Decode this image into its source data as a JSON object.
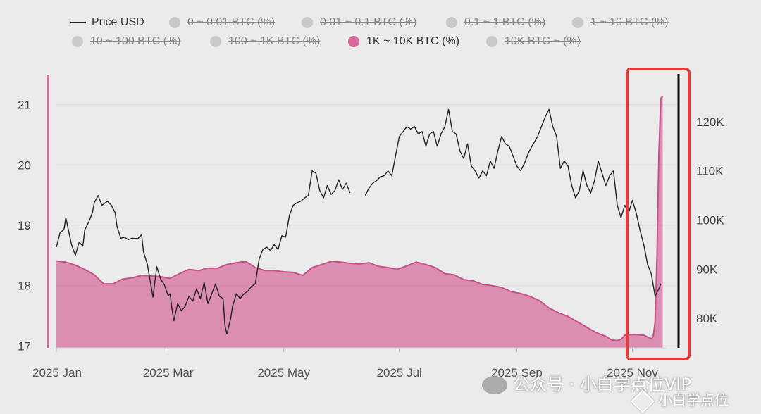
{
  "chart_data": {
    "type": "area",
    "legend": [
      {
        "label": "Price USD",
        "marker": "line",
        "active": true
      },
      {
        "label": "0 ~ 0.01 BTC (%)",
        "marker": "dot",
        "active": false
      },
      {
        "label": "0.01 ~ 0.1 BTC (%)",
        "marker": "dot",
        "active": false
      },
      {
        "label": "0.1 ~ 1 BTC (%)",
        "marker": "dot",
        "active": false
      },
      {
        "label": "1 ~ 10 BTC (%)",
        "marker": "dot",
        "active": false
      },
      {
        "label": "10 ~ 100 BTC (%)",
        "marker": "dot",
        "active": false
      },
      {
        "label": "100 ~ 1K BTC (%)",
        "marker": "dot",
        "active": false
      },
      {
        "label": "1K ~ 10K BTC (%)",
        "marker": "dot",
        "active": true
      },
      {
        "label": "10K BTC ~ (%)",
        "marker": "dot",
        "active": false
      }
    ],
    "x_ticks": [
      "2025 Jan",
      "2025 Mar",
      "2025 May",
      "2025 Jul",
      "2025 Sep",
      "2025 Nov"
    ],
    "x_tick_days": [
      0,
      59,
      120,
      181,
      243,
      304
    ],
    "y_left": {
      "ticks": [
        17,
        18,
        19,
        20,
        21
      ],
      "range": [
        16.97,
        21.45
      ]
    },
    "y_right": {
      "ticks": [
        80000,
        90000,
        100000,
        110000,
        120000
      ],
      "tick_labels": [
        "80K",
        "90K",
        "100K",
        "110K",
        "120K"
      ],
      "range": [
        74000,
        129000
      ]
    },
    "x_range_days": [
      0,
      328
    ],
    "series": [
      {
        "name": "1K ~ 10K BTC (%)",
        "axis": "left",
        "type": "area",
        "color": "#d6699b",
        "points": [
          [
            0,
            18.41
          ],
          [
            5,
            18.39
          ],
          [
            10,
            18.34
          ],
          [
            15,
            18.27
          ],
          [
            20,
            18.18
          ],
          [
            25,
            18.03
          ],
          [
            30,
            18.03
          ],
          [
            35,
            18.11
          ],
          [
            40,
            18.13
          ],
          [
            45,
            18.17
          ],
          [
            50,
            18.16
          ],
          [
            55,
            18.15
          ],
          [
            60,
            18.12
          ],
          [
            65,
            18.2
          ],
          [
            70,
            18.27
          ],
          [
            75,
            18.25
          ],
          [
            80,
            18.29
          ],
          [
            85,
            18.29
          ],
          [
            90,
            18.35
          ],
          [
            95,
            18.38
          ],
          [
            100,
            18.4
          ],
          [
            105,
            18.3
          ],
          [
            110,
            18.25
          ],
          [
            115,
            18.25
          ],
          [
            120,
            18.23
          ],
          [
            125,
            18.22
          ],
          [
            130,
            18.17
          ],
          [
            135,
            18.3
          ],
          [
            140,
            18.35
          ],
          [
            145,
            18.4
          ],
          [
            150,
            18.39
          ],
          [
            155,
            18.37
          ],
          [
            160,
            18.36
          ],
          [
            165,
            18.38
          ],
          [
            170,
            18.32
          ],
          [
            175,
            18.3
          ],
          [
            180,
            18.27
          ],
          [
            185,
            18.33
          ],
          [
            190,
            18.39
          ],
          [
            195,
            18.35
          ],
          [
            200,
            18.3
          ],
          [
            205,
            18.2
          ],
          [
            210,
            18.18
          ],
          [
            215,
            18.1
          ],
          [
            220,
            18.08
          ],
          [
            225,
            18.02
          ],
          [
            230,
            18.0
          ],
          [
            235,
            17.97
          ],
          [
            240,
            17.9
          ],
          [
            245,
            17.87
          ],
          [
            250,
            17.82
          ],
          [
            255,
            17.75
          ],
          [
            260,
            17.63
          ],
          [
            265,
            17.55
          ],
          [
            270,
            17.49
          ],
          [
            275,
            17.4
          ],
          [
            280,
            17.31
          ],
          [
            285,
            17.22
          ],
          [
            290,
            17.16
          ],
          [
            293,
            17.1
          ],
          [
            296,
            17.09
          ],
          [
            298,
            17.11
          ],
          [
            300,
            17.18
          ],
          [
            305,
            17.19
          ],
          [
            310,
            17.18
          ],
          [
            314,
            17.12
          ],
          [
            315,
            17.15
          ],
          [
            316,
            17.4
          ],
          [
            317,
            18.5
          ],
          [
            318,
            20.2
          ],
          [
            319,
            21.1
          ],
          [
            320,
            21.14
          ]
        ]
      },
      {
        "name": "Price USD",
        "axis": "right",
        "type": "line",
        "color": "#222222",
        "points": [
          [
            0,
            94500
          ],
          [
            2,
            97500
          ],
          [
            4,
            98000
          ],
          [
            5,
            100500
          ],
          [
            7,
            96800
          ],
          [
            8,
            95000
          ],
          [
            10,
            92800
          ],
          [
            12,
            95500
          ],
          [
            14,
            94700
          ],
          [
            15,
            98000
          ],
          [
            17,
            99500
          ],
          [
            19,
            101500
          ],
          [
            20,
            103500
          ],
          [
            22,
            105000
          ],
          [
            24,
            103000
          ],
          [
            27,
            103800
          ],
          [
            29,
            103000
          ],
          [
            31,
            101500
          ],
          [
            32,
            98700
          ],
          [
            34,
            96300
          ],
          [
            36,
            96500
          ],
          [
            38,
            96000
          ],
          [
            40,
            96300
          ],
          [
            43,
            96200
          ],
          [
            45,
            97000
          ],
          [
            46,
            93500
          ],
          [
            48,
            91000
          ],
          [
            50,
            86500
          ],
          [
            51,
            84300
          ],
          [
            53,
            90500
          ],
          [
            55,
            88000
          ],
          [
            57,
            86800
          ],
          [
            59,
            84600
          ],
          [
            60,
            85000
          ],
          [
            61,
            82000
          ],
          [
            62,
            79500
          ],
          [
            64,
            83000
          ],
          [
            66,
            81500
          ],
          [
            68,
            82500
          ],
          [
            70,
            84500
          ],
          [
            72,
            83500
          ],
          [
            74,
            86000
          ],
          [
            76,
            84000
          ],
          [
            78,
            87300
          ],
          [
            80,
            83000
          ],
          [
            82,
            85000
          ],
          [
            84,
            87000
          ],
          [
            86,
            84500
          ],
          [
            88,
            84000
          ],
          [
            89,
            78500
          ],
          [
            90,
            76800
          ],
          [
            92,
            80000
          ],
          [
            93,
            82500
          ],
          [
            95,
            85000
          ],
          [
            97,
            84000
          ],
          [
            99,
            85000
          ],
          [
            101,
            85500
          ],
          [
            103,
            86500
          ],
          [
            105,
            87000
          ],
          [
            107,
            92000
          ],
          [
            109,
            94000
          ],
          [
            111,
            94500
          ],
          [
            113,
            93800
          ],
          [
            115,
            95000
          ],
          [
            117,
            94000
          ],
          [
            119,
            96800
          ],
          [
            121,
            96500
          ],
          [
            123,
            101000
          ],
          [
            125,
            103000
          ],
          [
            127,
            103500
          ],
          [
            129,
            103800
          ],
          [
            131,
            104500
          ],
          [
            133,
            105000
          ],
          [
            135,
            110000
          ],
          [
            137,
            109500
          ],
          [
            139,
            106000
          ],
          [
            141,
            104500
          ],
          [
            143,
            107000
          ],
          [
            145,
            105200
          ],
          [
            147,
            106000
          ],
          [
            149,
            108200
          ],
          [
            151,
            106200
          ],
          [
            153,
            107500
          ],
          [
            155,
            105500
          ],
          [
            163,
            105000
          ],
          [
            165,
            106500
          ],
          [
            167,
            107500
          ],
          [
            169,
            108000
          ],
          [
            171,
            108800
          ],
          [
            173,
            109000
          ],
          [
            175,
            110000
          ],
          [
            177,
            109000
          ],
          [
            179,
            113000
          ],
          [
            181,
            117000
          ],
          [
            183,
            118000
          ],
          [
            185,
            119000
          ],
          [
            187,
            118500
          ],
          [
            189,
            119000
          ],
          [
            191,
            117500
          ],
          [
            193,
            118000
          ],
          [
            195,
            115000
          ],
          [
            197,
            117500
          ],
          [
            199,
            118000
          ],
          [
            201,
            115000
          ],
          [
            203,
            117500
          ],
          [
            205,
            119000
          ],
          [
            207,
            122500
          ],
          [
            209,
            118000
          ],
          [
            211,
            117500
          ],
          [
            213,
            114000
          ],
          [
            215,
            112500
          ],
          [
            217,
            115500
          ],
          [
            219,
            111000
          ],
          [
            221,
            110000
          ],
          [
            223,
            108500
          ],
          [
            225,
            110000
          ],
          [
            227,
            109000
          ],
          [
            229,
            112000
          ],
          [
            231,
            110500
          ],
          [
            233,
            114000
          ],
          [
            235,
            117000
          ],
          [
            237,
            115500
          ],
          [
            239,
            115000
          ],
          [
            241,
            113000
          ],
          [
            243,
            111000
          ],
          [
            245,
            110000
          ],
          [
            247,
            111500
          ],
          [
            249,
            113500
          ],
          [
            251,
            115000
          ],
          [
            254,
            117000
          ],
          [
            256,
            119000
          ],
          [
            258,
            121000
          ],
          [
            260,
            122500
          ],
          [
            262,
            119000
          ],
          [
            264,
            117000
          ],
          [
            266,
            110500
          ],
          [
            268,
            112000
          ],
          [
            270,
            111000
          ],
          [
            272,
            107000
          ],
          [
            274,
            104500
          ],
          [
            276,
            106000
          ],
          [
            278,
            110000
          ],
          [
            280,
            107000
          ],
          [
            282,
            105500
          ],
          [
            284,
            108000
          ],
          [
            286,
            112000
          ],
          [
            288,
            109500
          ],
          [
            290,
            107000
          ],
          [
            292,
            109000
          ],
          [
            294,
            110000
          ],
          [
            296,
            103000
          ],
          [
            298,
            100500
          ],
          [
            300,
            103000
          ],
          [
            302,
            101500
          ],
          [
            304,
            104000
          ],
          [
            306,
            101500
          ],
          [
            308,
            98000
          ],
          [
            310,
            95000
          ],
          [
            312,
            91000
          ],
          [
            314,
            89000
          ],
          [
            316,
            84500
          ],
          [
            318,
            86000
          ],
          [
            319,
            87000
          ]
        ]
      }
    ],
    "highlight": {
      "shape": "rectangle",
      "color": "#e23b3b"
    }
  },
  "watermarks": {
    "line1": "公众号 · 小白学点位VIP",
    "line2": "小白学点位"
  }
}
